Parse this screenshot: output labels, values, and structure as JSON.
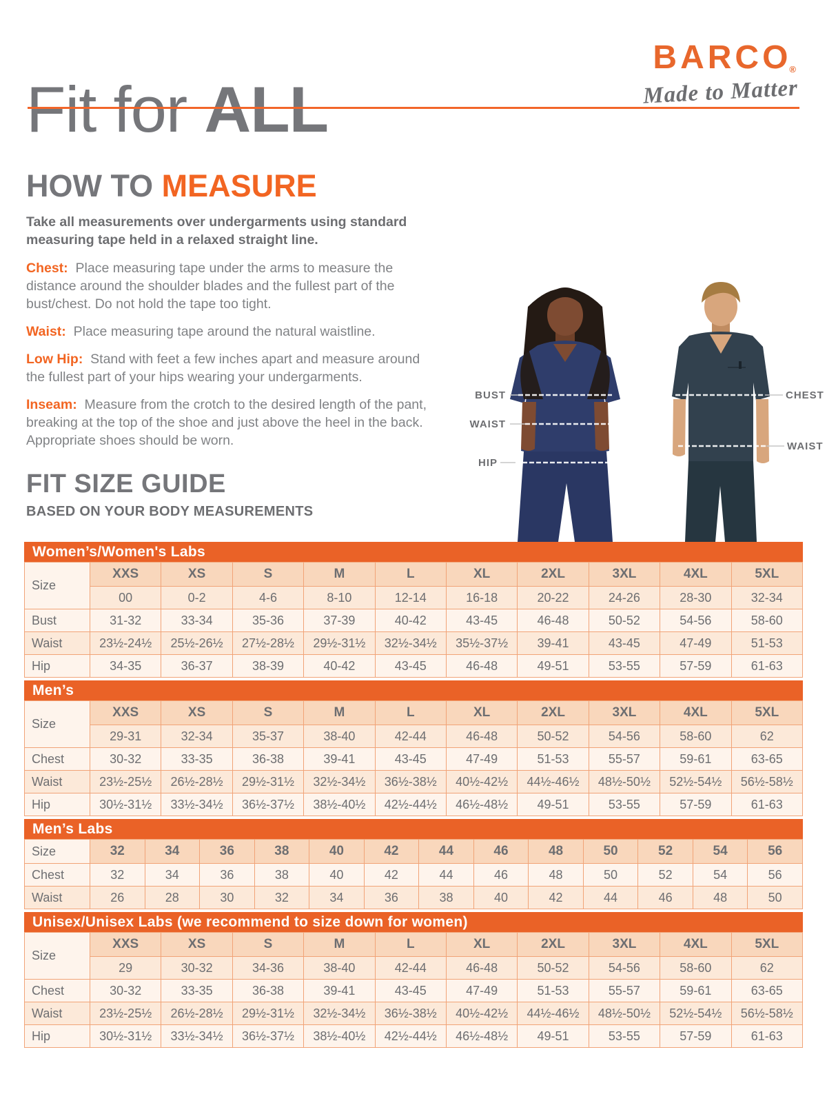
{
  "header": {
    "title_regular": "Fit for",
    "title_bold": "ALL",
    "brand": "BARCO",
    "registered_mark": "®",
    "tagline": "Made to Matter"
  },
  "how_to": {
    "title_gray": "HOW TO",
    "title_orange": "MEASURE",
    "intro": "Take all measurements over undergarments using standard measuring tape held in a relaxed straight line.",
    "items": [
      {
        "label": "Chest:",
        "text": "Place measuring tape under the arms to measure the distance around the shoulder blades and the fullest part of the bust/chest. Do not hold the tape too tight."
      },
      {
        "label": "Waist:",
        "text": "Place measuring tape around the natural waistline."
      },
      {
        "label": "Low Hip:",
        "text": "Stand with feet a few inches apart and measure around the fullest part of your hips wearing your undergarments."
      },
      {
        "label": "Inseam:",
        "text": "Measure from the crotch to the desired length of the pant, breaking at the top of the shoe and just above the heel in the back. Appropriate shoes should be worn."
      }
    ]
  },
  "figure": {
    "left_labels": [
      "BUST",
      "WAIST",
      "HIP"
    ],
    "right_labels": [
      "CHEST",
      "WAIST"
    ]
  },
  "fit_guide": {
    "title": "FIT SIZE GUIDE",
    "subtitle": "BASED ON YOUR BODY MEASUREMENTS"
  },
  "size_guide_tables": [
    {
      "id": "womens",
      "title": "Women’s/Women's Labs",
      "corner_label": "Size",
      "size_labels": [
        "XXS",
        "XS",
        "S",
        "M",
        "L",
        "XL",
        "2XL",
        "3XL",
        "4XL",
        "5XL"
      ],
      "size_numbers": [
        "00",
        "0-2",
        "4-6",
        "8-10",
        "12-14",
        "16-18",
        "20-22",
        "24-26",
        "28-30",
        "32-34"
      ],
      "rows": [
        {
          "label": "Bust",
          "values": [
            "31-32",
            "33-34",
            "35-36",
            "37-39",
            "40-42",
            "43-45",
            "46-48",
            "50-52",
            "54-56",
            "58-60"
          ]
        },
        {
          "label": "Waist",
          "values": [
            "23½-24½",
            "25½-26½",
            "27½-28½",
            "29½-31½",
            "32½-34½",
            "35½-37½",
            "39-41",
            "43-45",
            "47-49",
            "51-53"
          ]
        },
        {
          "label": "Hip",
          "values": [
            "34-35",
            "36-37",
            "38-39",
            "40-42",
            "43-45",
            "46-48",
            "49-51",
            "53-55",
            "57-59",
            "61-63"
          ]
        }
      ]
    },
    {
      "id": "mens",
      "title": "Men’s",
      "corner_label": "Size",
      "size_labels": [
        "XXS",
        "XS",
        "S",
        "M",
        "L",
        "XL",
        "2XL",
        "3XL",
        "4XL",
        "5XL"
      ],
      "size_numbers": [
        "29-31",
        "32-34",
        "35-37",
        "38-40",
        "42-44",
        "46-48",
        "50-52",
        "54-56",
        "58-60",
        "62"
      ],
      "rows": [
        {
          "label": "Chest",
          "values": [
            "30-32",
            "33-35",
            "36-38",
            "39-41",
            "43-45",
            "47-49",
            "51-53",
            "55-57",
            "59-61",
            "63-65"
          ]
        },
        {
          "label": "Waist",
          "values": [
            "23½-25½",
            "26½-28½",
            "29½-31½",
            "32½-34½",
            "36½-38½",
            "40½-42½",
            "44½-46½",
            "48½-50½",
            "52½-54½",
            "56½-58½"
          ]
        },
        {
          "label": "Hip",
          "values": [
            "30½-31½",
            "33½-34½",
            "36½-37½",
            "38½-40½",
            "42½-44½",
            "46½-48½",
            "49-51",
            "53-55",
            "57-59",
            "61-63"
          ]
        }
      ]
    },
    {
      "id": "mens-labs",
      "title": "Men’s Labs",
      "corner_label": "Size",
      "size_labels": [
        "32",
        "34",
        "36",
        "38",
        "40",
        "42",
        "44",
        "46",
        "48",
        "50",
        "52",
        "54",
        "56"
      ],
      "rows": [
        {
          "label": "Chest",
          "values": [
            "32",
            "34",
            "36",
            "38",
            "40",
            "42",
            "44",
            "46",
            "48",
            "50",
            "52",
            "54",
            "56"
          ]
        },
        {
          "label": "Waist",
          "values": [
            "26",
            "28",
            "30",
            "32",
            "34",
            "36",
            "38",
            "40",
            "42",
            "44",
            "46",
            "48",
            "50"
          ]
        }
      ]
    },
    {
      "id": "unisex",
      "title": "Unisex/Unisex Labs (we recommend to size down for women)",
      "corner_label": "Size",
      "size_labels": [
        "XXS",
        "XS",
        "S",
        "M",
        "L",
        "XL",
        "2XL",
        "3XL",
        "4XL",
        "5XL"
      ],
      "size_numbers": [
        "29",
        "30-32",
        "34-36",
        "38-40",
        "42-44",
        "46-48",
        "50-52",
        "54-56",
        "58-60",
        "62"
      ],
      "rows": [
        {
          "label": "Chest",
          "values": [
            "30-32",
            "33-35",
            "36-38",
            "39-41",
            "43-45",
            "47-49",
            "51-53",
            "55-57",
            "59-61",
            "63-65"
          ]
        },
        {
          "label": "Waist",
          "values": [
            "23½-25½",
            "26½-28½",
            "29½-31½",
            "32½-34½",
            "36½-38½",
            "40½-42½",
            "44½-46½",
            "48½-50½",
            "52½-54½",
            "56½-58½"
          ]
        },
        {
          "label": "Hip",
          "values": [
            "30½-31½",
            "33½-34½",
            "36½-37½",
            "38½-40½",
            "42½-44½",
            "46½-48½",
            "49-51",
            "53-55",
            "57-59",
            "61-63"
          ]
        }
      ]
    }
  ],
  "colors": {
    "banner_orange": "#EA6227",
    "accent_orange": "#F26522",
    "logo_orange": "#E8672C",
    "rule_orange": "#F26529",
    "heading_gray": "#75767A",
    "body_gray": "#808285",
    "table_text_gray": "#6D6E71",
    "header_peach": "#F9D7BC",
    "row_dark_cream": "#FCE9D9",
    "row_light_cream": "#FEF4EC",
    "table_border": "#F1A377",
    "womens_scrub_navy": "#2F3D6B",
    "mens_scrub_slate": "#32414E"
  }
}
